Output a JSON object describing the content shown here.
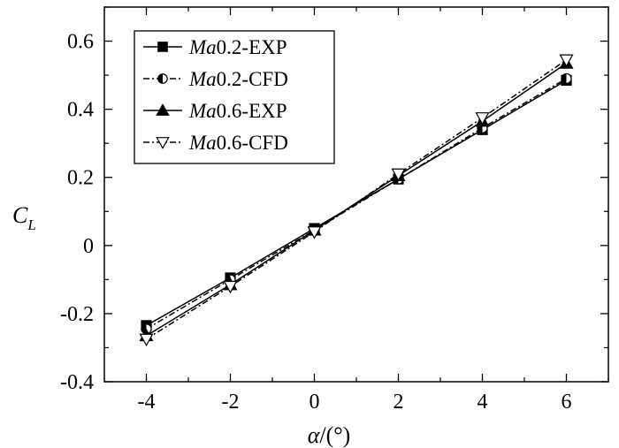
{
  "chart_data": {
    "type": "line",
    "xlabel_italic": "α",
    "xlabel_rest": "/(°)",
    "ylabel_main": "C",
    "ylabel_sub": "L",
    "xlim": [
      -5,
      7
    ],
    "ylim": [
      -0.4,
      0.7
    ],
    "xticks": [
      -4,
      -2,
      0,
      2,
      4,
      6
    ],
    "xtick_labels": [
      "-4",
      "-2",
      "0",
      "2",
      "4",
      "6"
    ],
    "yticks": [
      -0.4,
      -0.2,
      0,
      0.2,
      0.4,
      0.6
    ],
    "ytick_labels": [
      "-0.4",
      "-0.2",
      "0",
      "0.2",
      "0.4",
      "0.6"
    ],
    "grid": false,
    "legend_position": "top-left",
    "x": [
      -4,
      -2,
      0,
      2,
      4,
      6
    ],
    "series": [
      {
        "name_italic": "Ma",
        "name_rest": "0.2-EXP",
        "values": [
          -0.235,
          -0.095,
          0.05,
          0.195,
          0.34,
          0.485
        ],
        "marker": "square",
        "line": "solid"
      },
      {
        "name_italic": "Ma",
        "name_rest": "0.2-CFD",
        "values": [
          -0.245,
          -0.1,
          0.045,
          0.195,
          0.345,
          0.49
        ],
        "marker": "half-circle",
        "line": "dashdot"
      },
      {
        "name_italic": "Ma",
        "name_rest": "0.6-EXP",
        "values": [
          -0.265,
          -0.115,
          0.045,
          0.205,
          0.365,
          0.535
        ],
        "marker": "triangle-up",
        "line": "solid"
      },
      {
        "name_italic": "Ma",
        "name_rest": "0.6-CFD",
        "values": [
          -0.275,
          -0.12,
          0.04,
          0.21,
          0.375,
          0.545
        ],
        "marker": "triangle-down",
        "line": "dashdot"
      }
    ]
  }
}
